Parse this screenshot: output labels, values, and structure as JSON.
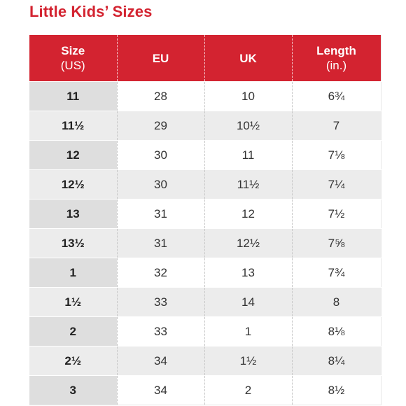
{
  "title": "Little Kids’ Sizes",
  "header": {
    "size_label": "Size",
    "size_sub": "(US)",
    "eu": "EU",
    "uk": "UK",
    "length_label": "Length",
    "length_sub": "(in.)"
  },
  "colors": {
    "accent": "#d32330",
    "row_alt": "#ececec",
    "first_col": "#dedede"
  },
  "rows": [
    {
      "us": "11",
      "eu": "28",
      "uk": "10",
      "length": "6¾"
    },
    {
      "us": "11½",
      "eu": "29",
      "uk": "10½",
      "length": "7"
    },
    {
      "us": "12",
      "eu": "30",
      "uk": "11",
      "length": "7⅛"
    },
    {
      "us": "12½",
      "eu": "30",
      "uk": "11½",
      "length": "7¼"
    },
    {
      "us": "13",
      "eu": "31",
      "uk": "12",
      "length": "7½"
    },
    {
      "us": "13½",
      "eu": "31",
      "uk": "12½",
      "length": "7⅝"
    },
    {
      "us": "1",
      "eu": "32",
      "uk": "13",
      "length": "7¾"
    },
    {
      "us": "1½",
      "eu": "33",
      "uk": "14",
      "length": "8"
    },
    {
      "us": "2",
      "eu": "33",
      "uk": "1",
      "length": "8⅛"
    },
    {
      "us": "2½",
      "eu": "34",
      "uk": "1½",
      "length": "8¼"
    },
    {
      "us": "3",
      "eu": "34",
      "uk": "2",
      "length": "8½"
    }
  ]
}
